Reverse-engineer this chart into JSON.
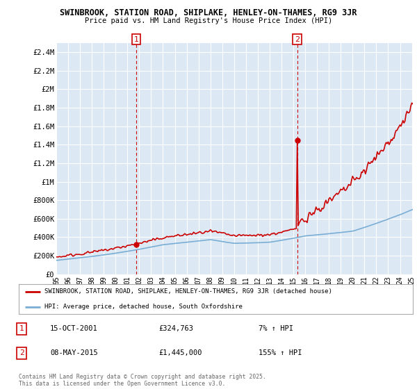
{
  "title_line1": "SWINBROOK, STATION ROAD, SHIPLAKE, HENLEY-ON-THAMES, RG9 3JR",
  "title_line2": "Price paid vs. HM Land Registry's House Price Index (HPI)",
  "background_color": "#ffffff",
  "plot_bg_color": "#dce9f5",
  "grid_color": "#ffffff",
  "hpi_color": "#7aadd4",
  "price_color": "#cc0000",
  "vline_color": "#cc0000",
  "annotation1": {
    "x_year": 2001,
    "x_month": 10,
    "label": "1",
    "date": "15-OCT-2001",
    "price": "£324,763",
    "change": "7% ↑ HPI",
    "price_val": 324763
  },
  "annotation2": {
    "x_year": 2015,
    "x_month": 5,
    "label": "2",
    "date": "08-MAY-2015",
    "price": "£1,445,000",
    "change": "155% ↑ HPI",
    "price_val": 1445000
  },
  "ylim": [
    0,
    2500000
  ],
  "yticks": [
    0,
    200000,
    400000,
    600000,
    800000,
    1000000,
    1200000,
    1400000,
    1600000,
    1800000,
    2000000,
    2200000,
    2400000
  ],
  "ytick_labels": [
    "£0",
    "£200K",
    "£400K",
    "£600K",
    "£800K",
    "£1M",
    "£1.2M",
    "£1.4M",
    "£1.6M",
    "£1.8M",
    "£2M",
    "£2.2M",
    "£2.4M"
  ],
  "xlim_months": [
    0,
    362
  ],
  "xtick_years": [
    1995,
    1996,
    1997,
    1998,
    1999,
    2000,
    2001,
    2002,
    2003,
    2004,
    2005,
    2006,
    2007,
    2008,
    2009,
    2010,
    2011,
    2012,
    2013,
    2014,
    2015,
    2016,
    2017,
    2018,
    2019,
    2020,
    2021,
    2022,
    2023,
    2024,
    2025
  ],
  "legend_red_label": "SWINBROOK, STATION ROAD, SHIPLAKE, HENLEY-ON-THAMES, RG9 3JR (detached house)",
  "legend_blue_label": "HPI: Average price, detached house, South Oxfordshire",
  "footer": "Contains HM Land Registry data © Crown copyright and database right 2025.\nThis data is licensed under the Open Government Licence v3.0."
}
